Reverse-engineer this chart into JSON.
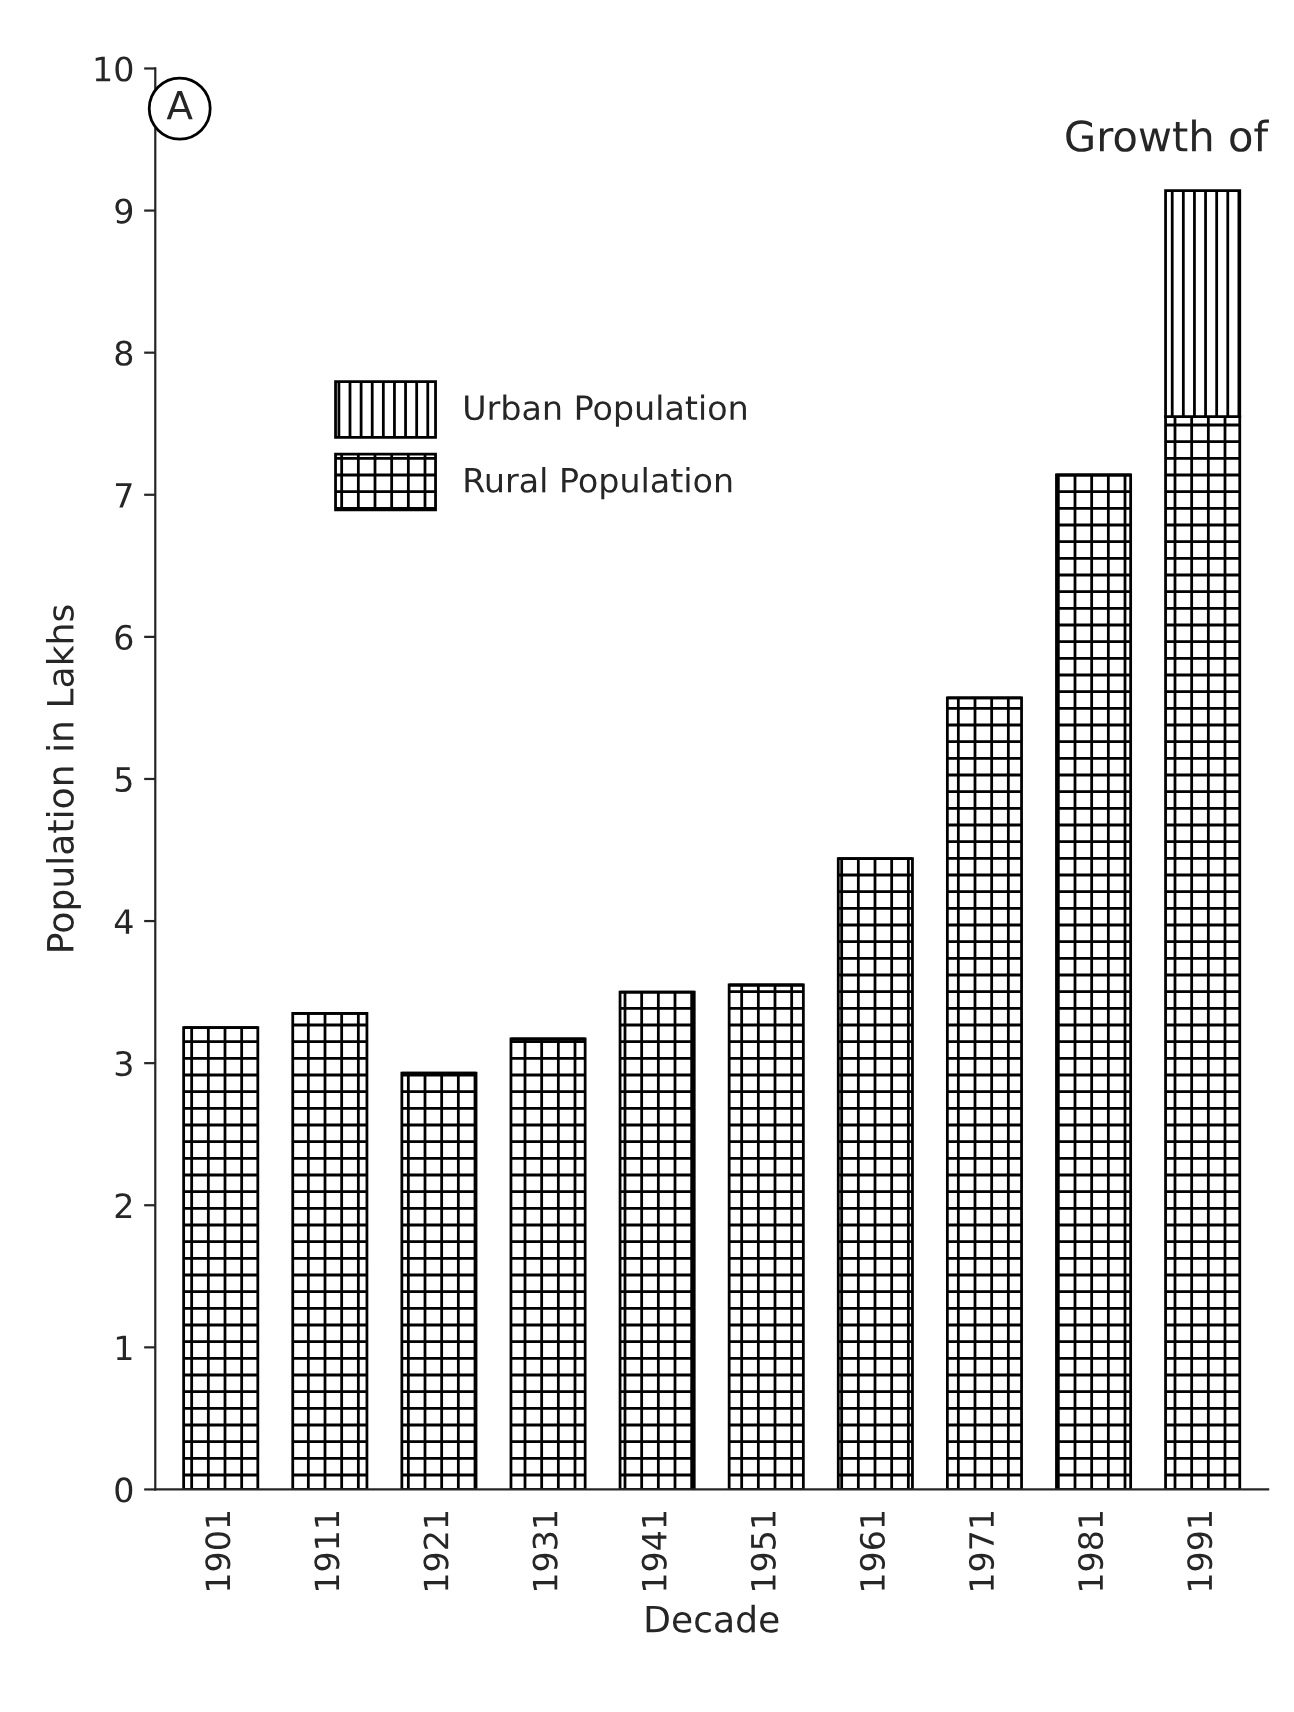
{
  "chart_data": {
    "type": "bar",
    "title": "Growth of",
    "xlabel": "Decade",
    "ylabel": "Population in Lakhs",
    "categories": [
      "1901",
      "1911",
      "1921",
      "1931",
      "1941",
      "1951",
      "1961",
      "1971",
      "1981",
      "1991"
    ],
    "stacked": true,
    "series": [
      {
        "name": "Rural Population",
        "color": "#000000",
        "values": [
          3.25,
          3.35,
          2.93,
          3.17,
          3.5,
          3.55,
          4.44,
          5.57,
          7.14,
          7.55
        ]
      },
      {
        "name": "Urban Population",
        "color": "#000000",
        "values": [
          0,
          0,
          0,
          0,
          0,
          0,
          0,
          0,
          0,
          1.59
        ]
      }
    ],
    "ylim": [
      0,
      10
    ],
    "yticks": [
      0,
      1,
      2,
      3,
      4,
      5,
      6,
      7,
      8,
      9,
      10
    ],
    "legend": "top left",
    "annotations": [
      "A"
    ]
  }
}
